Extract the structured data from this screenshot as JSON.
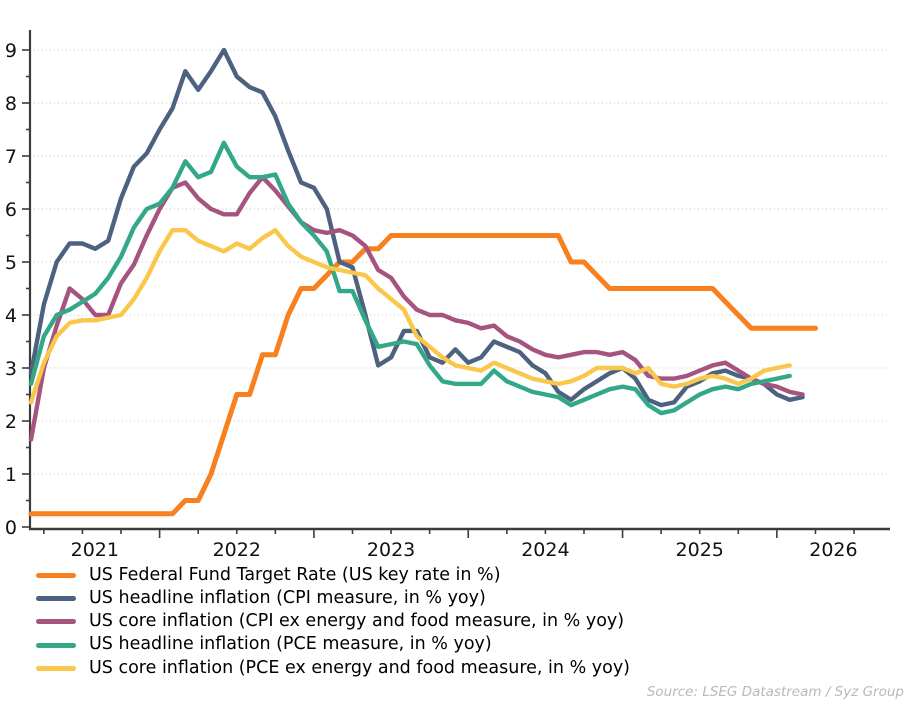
{
  "source_note": "Source: LSEG Datastream / Syz Group",
  "chart_data": {
    "type": "line",
    "title": "",
    "xlabel": "",
    "ylabel": "",
    "x_axis": {
      "unit": "month",
      "start_month": "2021-03",
      "tick_labels": [
        "2021",
        "2022",
        "2023",
        "2024",
        "2025",
        "2026"
      ]
    },
    "y_axis": {
      "min": 0,
      "max": 9,
      "tick_interval": 1,
      "gridlines": true
    },
    "legend_position": "bottom-left",
    "series": [
      {
        "id": "fed-funds-rate",
        "name": "US Federal Fund Target Rate (US key rate in %)",
        "color": "#F8801E",
        "start_month": "2021-03",
        "values": [
          0.25,
          0.25,
          0.25,
          0.25,
          0.25,
          0.25,
          0.25,
          0.25,
          0.25,
          0.25,
          0.25,
          0.25,
          0.5,
          0.5,
          1.0,
          1.75,
          2.5,
          2.5,
          3.25,
          3.25,
          4.0,
          4.5,
          4.5,
          4.75,
          5.0,
          5.0,
          5.25,
          5.25,
          5.5,
          5.5,
          5.5,
          5.5,
          5.5,
          5.5,
          5.5,
          5.5,
          5.5,
          5.5,
          5.5,
          5.5,
          5.5,
          5.5,
          5.0,
          5.0,
          4.75,
          4.5,
          4.5,
          4.5,
          4.5,
          4.5,
          4.5,
          4.5,
          4.5,
          4.5,
          4.25,
          4.0,
          3.75,
          3.75,
          3.75,
          3.75,
          3.75,
          3.75
        ]
      },
      {
        "id": "cpi-headline",
        "name": "US headline inflation (CPI measure, in % yoy)",
        "color": "#4D6180",
        "start_month": "2021-03",
        "values": [
          2.9,
          4.2,
          5.0,
          5.35,
          5.35,
          5.25,
          5.4,
          6.2,
          6.8,
          7.05,
          7.5,
          7.9,
          8.6,
          8.25,
          8.6,
          9.0,
          8.5,
          8.3,
          8.2,
          7.75,
          7.1,
          6.5,
          6.4,
          6.0,
          5.0,
          4.9,
          4.0,
          3.05,
          3.2,
          3.7,
          3.7,
          3.2,
          3.1,
          3.35,
          3.1,
          3.2,
          3.5,
          3.4,
          3.3,
          3.05,
          2.9,
          2.55,
          2.4,
          2.6,
          2.75,
          2.9,
          3.0,
          2.8,
          2.4,
          2.3,
          2.35,
          2.65,
          2.75,
          2.9,
          2.95,
          2.85,
          2.8,
          2.7,
          2.5,
          2.4,
          2.45
        ]
      },
      {
        "id": "cpi-core",
        "name": "US core inflation (CPI ex energy and food measure, in % yoy)",
        "color": "#A5537F",
        "start_month": "2021-03",
        "values": [
          1.65,
          3.0,
          3.8,
          4.5,
          4.3,
          4.0,
          4.0,
          4.6,
          4.95,
          5.5,
          6.0,
          6.4,
          6.5,
          6.2,
          6.0,
          5.9,
          5.9,
          6.3,
          6.6,
          6.35,
          6.05,
          5.75,
          5.6,
          5.55,
          5.6,
          5.5,
          5.3,
          4.85,
          4.7,
          4.35,
          4.1,
          4.0,
          4.0,
          3.9,
          3.85,
          3.75,
          3.8,
          3.6,
          3.5,
          3.35,
          3.25,
          3.2,
          3.25,
          3.3,
          3.3,
          3.25,
          3.3,
          3.15,
          2.85,
          2.8,
          2.8,
          2.85,
          2.95,
          3.05,
          3.1,
          2.95,
          2.8,
          2.7,
          2.65,
          2.55,
          2.5
        ]
      },
      {
        "id": "pce-headline",
        "name": "US headline inflation (PCE measure, in % yoy)",
        "color": "#33A888",
        "start_month": "2021-03",
        "values": [
          2.7,
          3.6,
          4.0,
          4.1,
          4.25,
          4.4,
          4.7,
          5.1,
          5.65,
          6.0,
          6.1,
          6.4,
          6.9,
          6.6,
          6.7,
          7.25,
          6.8,
          6.6,
          6.6,
          6.65,
          6.1,
          5.75,
          5.5,
          5.2,
          4.45,
          4.45,
          3.9,
          3.4,
          3.45,
          3.5,
          3.45,
          3.05,
          2.75,
          2.7,
          2.7,
          2.7,
          2.95,
          2.75,
          2.65,
          2.55,
          2.5,
          2.45,
          2.3,
          2.4,
          2.5,
          2.6,
          2.65,
          2.6,
          2.3,
          2.15,
          2.2,
          2.35,
          2.5,
          2.6,
          2.65,
          2.6,
          2.7,
          2.75,
          2.8,
          2.85
        ]
      },
      {
        "id": "pce-core",
        "name": "US core inflation (PCE ex energy and food measure, in % yoy)",
        "color": "#F9C74B",
        "start_month": "2021-03",
        "values": [
          2.35,
          3.1,
          3.6,
          3.85,
          3.9,
          3.9,
          3.95,
          4.0,
          4.3,
          4.7,
          5.2,
          5.6,
          5.6,
          5.4,
          5.3,
          5.2,
          5.35,
          5.25,
          5.45,
          5.6,
          5.3,
          5.1,
          5.0,
          4.9,
          4.85,
          4.8,
          4.75,
          4.5,
          4.3,
          4.1,
          3.6,
          3.4,
          3.2,
          3.05,
          3.0,
          2.95,
          3.1,
          3.0,
          2.9,
          2.8,
          2.75,
          2.7,
          2.75,
          2.85,
          3.0,
          3.0,
          3.0,
          2.9,
          3.0,
          2.7,
          2.65,
          2.7,
          2.8,
          2.85,
          2.8,
          2.7,
          2.8,
          2.95,
          3.0,
          3.05
        ]
      }
    ]
  }
}
